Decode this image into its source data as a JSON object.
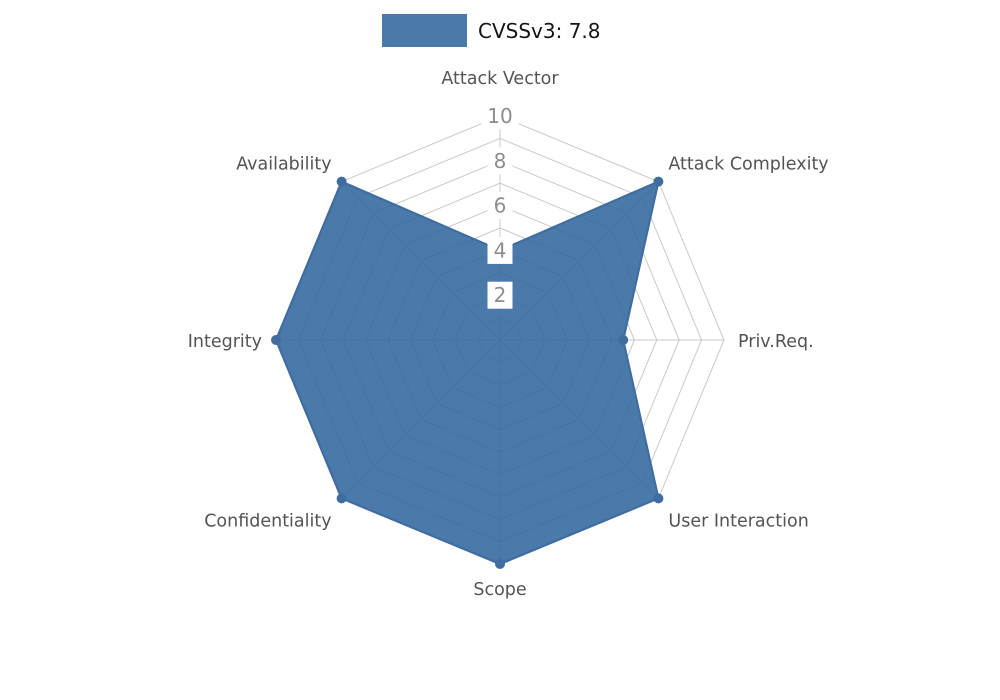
{
  "chart_data": {
    "type": "radar",
    "title": "",
    "series": [
      {
        "name": "CVSSv3: 7.8",
        "values": [
          4,
          10,
          5.5,
          10,
          10,
          10,
          10,
          10
        ]
      }
    ],
    "axes": [
      "Attack Vector",
      "Attack Complexity",
      "Priv.Req.",
      "User Interaction",
      "Scope",
      "Confidentiality",
      "Integrity",
      "Availability"
    ],
    "scale": {
      "min": 0,
      "max": 10,
      "ring_step": 1,
      "tick_values": [
        2,
        4,
        6,
        8,
        10
      ]
    },
    "grid": true,
    "legend_position": "top-center",
    "background": "#ffffff",
    "colors": {
      "fill": "#31689d",
      "fill_opacity": 0.88,
      "stroke": "#3f6da0",
      "swatch": "#4a7aa9",
      "grid": "#c9c9c9",
      "axis_label": "#545454",
      "tick_text": "#8d8d8d",
      "tick_bg": "#ffffff"
    }
  }
}
